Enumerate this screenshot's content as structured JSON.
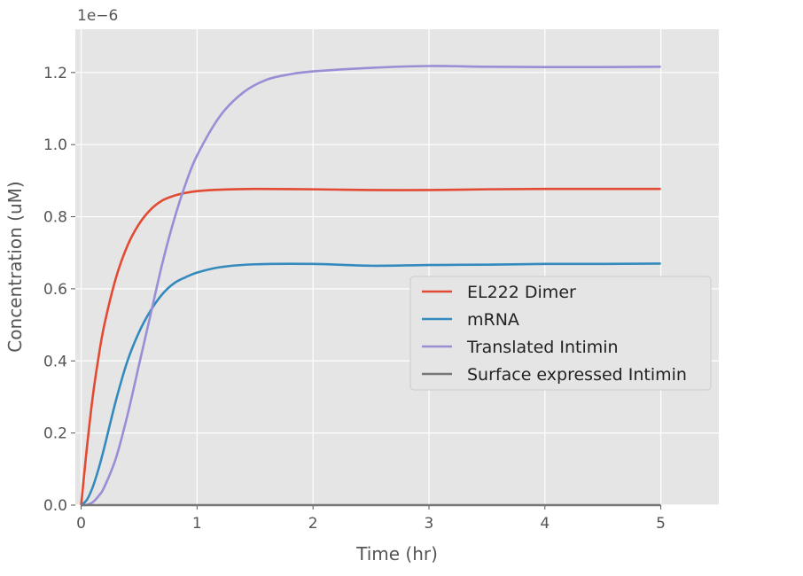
{
  "chart_data": {
    "type": "line",
    "offset_label": "1e−6",
    "xlabel": "Time (hr)",
    "ylabel": "Concentration (uM)",
    "xlim": [
      -0.05,
      5.5
    ],
    "ylim": [
      0.0,
      1.32
    ],
    "xticks": [
      "0",
      "1",
      "2",
      "3",
      "4",
      "5"
    ],
    "yticks": [
      "0.0",
      "0.2",
      "0.4",
      "0.6",
      "0.8",
      "1.0",
      "1.2"
    ],
    "grid": true,
    "legend_position": "center-right",
    "series": [
      {
        "name": "EL222 Dimer",
        "color": "#E24A33",
        "x": [
          0,
          0.05,
          0.1,
          0.15,
          0.2,
          0.3,
          0.4,
          0.5,
          0.6,
          0.7,
          0.8,
          0.9,
          1.0,
          1.2,
          1.5,
          2.0,
          2.5,
          3.0,
          3.5,
          4.0,
          4.5,
          5.0
        ],
        "y": [
          0,
          0.16,
          0.3,
          0.41,
          0.5,
          0.63,
          0.72,
          0.78,
          0.82,
          0.845,
          0.858,
          0.866,
          0.871,
          0.875,
          0.877,
          0.876,
          0.874,
          0.874,
          0.876,
          0.877,
          0.877,
          0.877
        ]
      },
      {
        "name": "mRNA",
        "color": "#348ABD",
        "x": [
          0,
          0.05,
          0.1,
          0.15,
          0.2,
          0.3,
          0.4,
          0.5,
          0.6,
          0.7,
          0.8,
          0.9,
          1.0,
          1.2,
          1.5,
          2.0,
          2.5,
          3.0,
          3.5,
          4.0,
          4.5,
          5.0
        ],
        "y": [
          0,
          0.015,
          0.05,
          0.1,
          0.16,
          0.29,
          0.4,
          0.48,
          0.54,
          0.585,
          0.615,
          0.632,
          0.645,
          0.66,
          0.668,
          0.669,
          0.664,
          0.666,
          0.667,
          0.669,
          0.669,
          0.67
        ]
      },
      {
        "name": "Translated Intimin",
        "color": "#988ED5",
        "x": [
          0,
          0.05,
          0.1,
          0.15,
          0.2,
          0.3,
          0.4,
          0.5,
          0.6,
          0.7,
          0.8,
          0.9,
          1.0,
          1.2,
          1.4,
          1.6,
          1.8,
          2.0,
          2.5,
          3.0,
          3.5,
          4.0,
          4.5,
          5.0
        ],
        "y": [
          0,
          0.001,
          0.008,
          0.025,
          0.05,
          0.13,
          0.25,
          0.39,
          0.53,
          0.67,
          0.79,
          0.89,
          0.97,
          1.08,
          1.145,
          1.18,
          1.195,
          1.203,
          1.213,
          1.218,
          1.216,
          1.215,
          1.215,
          1.216
        ]
      },
      {
        "name": "Surface expressed Intimin",
        "color": "#777777",
        "x": [
          0,
          5.0
        ],
        "y": [
          0,
          0
        ]
      }
    ]
  }
}
